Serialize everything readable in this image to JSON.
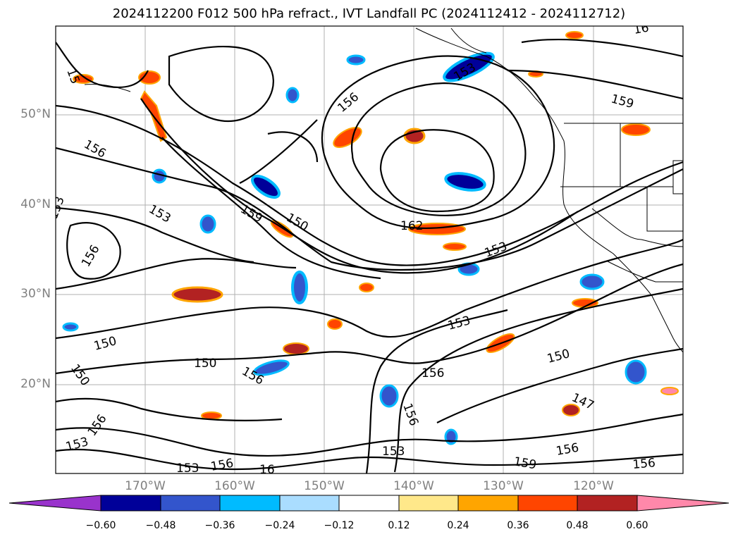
{
  "title": "2024112200 F012 500 hPa refract., IVT Landfall PC (2024112412 - 2024112712)",
  "map": {
    "lat_labels": [
      "50°N",
      "40°N",
      "30°N",
      "20°N"
    ],
    "lon_labels": [
      "170°W",
      "160°W",
      "150°W",
      "140°W",
      "130°W",
      "120°W"
    ],
    "contour_labels": [
      "15",
      "156",
      "153",
      "159",
      "150",
      "156",
      "153",
      "156",
      "153",
      "159",
      "162",
      "153",
      "150",
      "150",
      "153",
      "156",
      "153",
      "150",
      "150",
      "156",
      "147",
      "156",
      "153",
      "156",
      "159",
      "156",
      "153",
      "156",
      "16",
      "156",
      "159",
      "16"
    ],
    "coastline_color": "#000000",
    "contour_color": "#000000"
  },
  "colorbar": {
    "colors": [
      "#9933cc",
      "#000099",
      "#3355cc",
      "#00bbff",
      "#aaddff",
      "#ffffff",
      "#ffe88a",
      "#ffa500",
      "#ff4500",
      "#b22222",
      "#ff88aa"
    ],
    "ticks": [
      "−0.60",
      "−0.48",
      "−0.36",
      "−0.24",
      "−0.12",
      "0.12",
      "0.24",
      "0.36",
      "0.48",
      "0.60"
    ]
  }
}
